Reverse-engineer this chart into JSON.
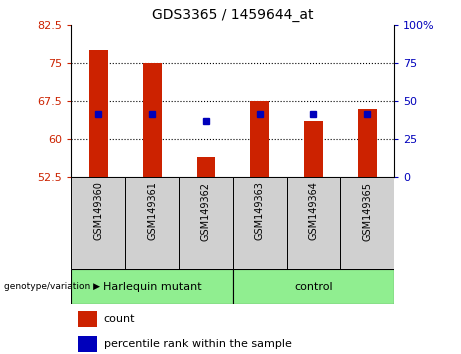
{
  "title": "GDS3365 / 1459644_at",
  "samples": [
    "GSM149360",
    "GSM149361",
    "GSM149362",
    "GSM149363",
    "GSM149364",
    "GSM149365"
  ],
  "bar_tops": [
    77.5,
    75.0,
    56.5,
    67.5,
    63.5,
    66.0
  ],
  "bar_base": 52.5,
  "blue_markers_left": [
    65.0,
    65.0,
    63.5,
    65.0,
    65.0,
    65.0
  ],
  "ylim_left": [
    52.5,
    82.5
  ],
  "ylim_right": [
    0,
    100
  ],
  "yticks_left": [
    52.5,
    60.0,
    67.5,
    75.0,
    82.5
  ],
  "yticks_right": [
    0,
    25,
    50,
    75,
    100
  ],
  "hlines": [
    60.0,
    67.5,
    75.0
  ],
  "bar_color": "#CC2200",
  "blue_color": "#0000BB",
  "left_tick_color": "#CC2200",
  "right_tick_color": "#0000BB",
  "bg_xtick": "#d0d0d0",
  "group1_label": "Harlequin mutant",
  "group2_label": "control",
  "group_color": "#90EE90",
  "genotype_label": "genotype/variation",
  "legend_count": "count",
  "legend_percentile": "percentile rank within the sample",
  "bar_width": 0.35
}
